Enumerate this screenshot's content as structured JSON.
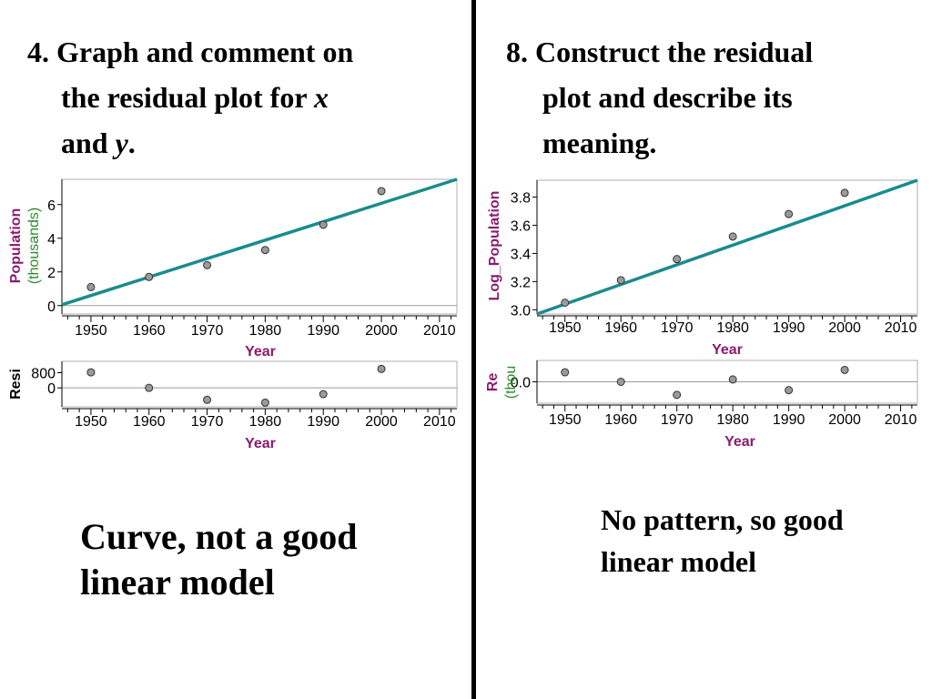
{
  "left_panel": {
    "question_parts": [
      "4.  Graph and comment on",
      "the residual plot for ",
      "x",
      "and ",
      "y",
      "."
    ],
    "comment": "Curve, not a good linear model"
  },
  "right_panel": {
    "question_lines": [
      "8. Construct the residual",
      "plot and describe its",
      "meaning."
    ],
    "comment": "No pattern, so good linear model"
  },
  "colors": {
    "fit_line": "#1a8c8c",
    "point": "#9a9a9a",
    "axis_label": "#8b1a6e",
    "unit_label": "#2e8b2e"
  },
  "chart_data": [
    {
      "type": "scatter",
      "xlabel": "Year",
      "ylabel": "Population",
      "ylabel_unit": "(thousands)",
      "xlim": [
        1945,
        2013
      ],
      "ylim": [
        -0.5,
        7.5
      ],
      "xticks": [
        "1950",
        "1960",
        "1970",
        "1980",
        "1990",
        "2000",
        "2010"
      ],
      "yticks": [
        "0",
        "2",
        "4",
        "6"
      ],
      "x": [
        1950,
        1960,
        1970,
        1980,
        1990,
        2000
      ],
      "y": [
        1.1,
        1.7,
        2.4,
        3.3,
        4.8,
        6.8
      ],
      "fit_line": {
        "x": [
          1945,
          2013
        ],
        "y": [
          0.05,
          7.5
        ]
      },
      "grid": false
    },
    {
      "type": "scatter",
      "xlabel": "Year",
      "ylabel": "Resi",
      "xlim": [
        1945,
        2013
      ],
      "ylim": [
        -1000,
        1400
      ],
      "xticks": [
        "1950",
        "1960",
        "1970",
        "1980",
        "1990",
        "2000",
        "2010"
      ],
      "yticks": [
        "0",
        "800"
      ],
      "x": [
        1950,
        1960,
        1970,
        1980,
        1990,
        2000
      ],
      "y": [
        820,
        0,
        -630,
        -780,
        -330,
        1000
      ],
      "grid": false
    },
    {
      "type": "scatter",
      "xlabel": "Year",
      "ylabel": "Log_Population",
      "xlim": [
        1945,
        2013
      ],
      "ylim": [
        2.97,
        3.92
      ],
      "xticks": [
        "1950",
        "1960",
        "1970",
        "1980",
        "1990",
        "2000",
        "2010"
      ],
      "yticks": [
        "3.0",
        "3.2",
        "3.4",
        "3.6",
        "3.8"
      ],
      "x": [
        1950,
        1960,
        1970,
        1980,
        1990,
        2000
      ],
      "y": [
        3.05,
        3.21,
        3.36,
        3.52,
        3.68,
        3.83
      ],
      "fit_line": {
        "x": [
          1945,
          2013
        ],
        "y": [
          2.97,
          3.92
        ]
      },
      "grid": false
    },
    {
      "type": "scatter",
      "xlabel": "Year",
      "ylabel": "Re",
      "ylabel_unit": "(thou",
      "xlim": [
        1945,
        2013
      ],
      "ylim": [
        -0.09,
        0.09
      ],
      "xticks": [
        "1950",
        "1960",
        "1970",
        "1980",
        "1990",
        "2000",
        "2010"
      ],
      "yticks": [
        "0.0"
      ],
      "x": [
        1950,
        1960,
        1970,
        1980,
        1990,
        2000
      ],
      "y": [
        0.04,
        0.0,
        -0.055,
        0.01,
        -0.035,
        0.05
      ],
      "grid": false
    }
  ]
}
